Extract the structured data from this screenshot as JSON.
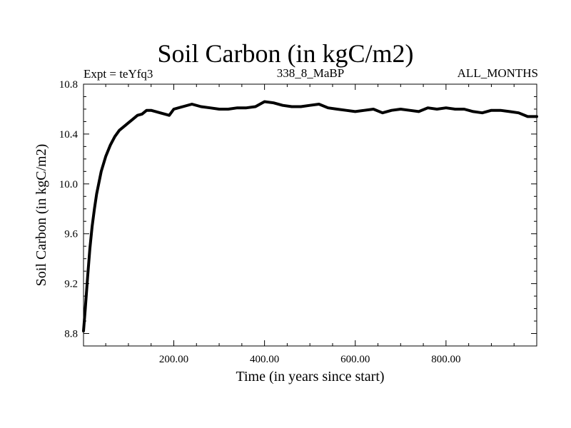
{
  "chart_data": {
    "type": "line",
    "title": "Soil Carbon (in kgC/m2)",
    "subtitle_left": "Expt = teYfq3",
    "subtitle_center": "338_8_MaBP",
    "subtitle_right": "ALL_MONTHS",
    "xlabel": "Time (in years since start)",
    "ylabel": "Soil Carbon (in kgC/m2)",
    "xlim": [
      1,
      1000
    ],
    "ylim": [
      8.7,
      10.8
    ],
    "xticks": [
      200,
      400,
      600,
      800
    ],
    "xtick_labels": [
      "200.00",
      "400.00",
      "600.00",
      "800.00"
    ],
    "yticks": [
      8.8,
      9.2,
      9.6,
      10.0,
      10.4,
      10.8
    ],
    "ytick_labels": [
      "8.8",
      "9.2",
      "9.6",
      "10.0",
      "10.4",
      "10.8"
    ],
    "grid": false,
    "series": [
      {
        "name": "Soil Carbon",
        "color": "#000000",
        "x": [
          1,
          5,
          10,
          15,
          20,
          25,
          30,
          40,
          50,
          60,
          70,
          80,
          90,
          100,
          110,
          120,
          130,
          140,
          150,
          160,
          170,
          180,
          190,
          200,
          220,
          240,
          260,
          280,
          300,
          320,
          340,
          360,
          380,
          400,
          420,
          440,
          460,
          480,
          500,
          520,
          540,
          560,
          580,
          600,
          620,
          640,
          660,
          680,
          700,
          720,
          740,
          760,
          780,
          800,
          820,
          840,
          860,
          880,
          900,
          920,
          940,
          960,
          980,
          1000
        ],
        "values": [
          8.82,
          9.0,
          9.25,
          9.48,
          9.66,
          9.8,
          9.92,
          10.1,
          10.22,
          10.31,
          10.38,
          10.43,
          10.46,
          10.49,
          10.52,
          10.55,
          10.56,
          10.59,
          10.59,
          10.58,
          10.57,
          10.56,
          10.55,
          10.6,
          10.62,
          10.64,
          10.62,
          10.61,
          10.6,
          10.6,
          10.61,
          10.61,
          10.62,
          10.66,
          10.65,
          10.63,
          10.62,
          10.62,
          10.63,
          10.64,
          10.61,
          10.6,
          10.59,
          10.58,
          10.59,
          10.6,
          10.57,
          10.59,
          10.6,
          10.59,
          10.58,
          10.61,
          10.6,
          10.61,
          10.6,
          10.6,
          10.58,
          10.57,
          10.59,
          10.59,
          10.58,
          10.57,
          10.54,
          10.54
        ]
      }
    ]
  }
}
